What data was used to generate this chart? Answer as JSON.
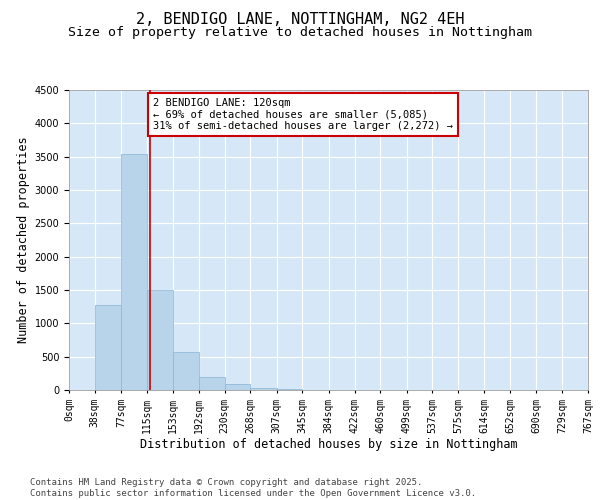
{
  "title": "2, BENDIGO LANE, NOTTINGHAM, NG2 4EH",
  "subtitle": "Size of property relative to detached houses in Nottingham",
  "xlabel": "Distribution of detached houses by size in Nottingham",
  "ylabel": "Number of detached properties",
  "background_color": "#d6e8f7",
  "bar_color": "#b8d4ea",
  "bar_edge_color": "#8ab4d4",
  "annotation_box_color": "#cc0000",
  "property_line_color": "#cc0000",
  "footnote_line1": "Contains HM Land Registry data © Crown copyright and database right 2025.",
  "footnote_line2": "Contains public sector information licensed under the Open Government Licence v3.0.",
  "annotation_text": "2 BENDIGO LANE: 120sqm\n← 69% of detached houses are smaller (5,085)\n31% of semi-detached houses are larger (2,272) →",
  "property_size": 120,
  "bin_edges": [
    0,
    38,
    77,
    115,
    153,
    192,
    230,
    268,
    307,
    345,
    384,
    422,
    460,
    499,
    537,
    575,
    614,
    652,
    690,
    729,
    767
  ],
  "counts": [
    3,
    1268,
    3540,
    1497,
    576,
    198,
    88,
    29,
    10,
    3,
    1,
    0,
    0,
    0,
    0,
    0,
    0,
    0,
    0,
    0
  ],
  "ylim": [
    0,
    4500
  ],
  "yticks": [
    0,
    500,
    1000,
    1500,
    2000,
    2500,
    3000,
    3500,
    4000,
    4500
  ],
  "title_fontsize": 11,
  "subtitle_fontsize": 9.5,
  "axis_label_fontsize": 8.5,
  "tick_fontsize": 7,
  "annotation_fontsize": 7.5,
  "footnote_fontsize": 6.5
}
